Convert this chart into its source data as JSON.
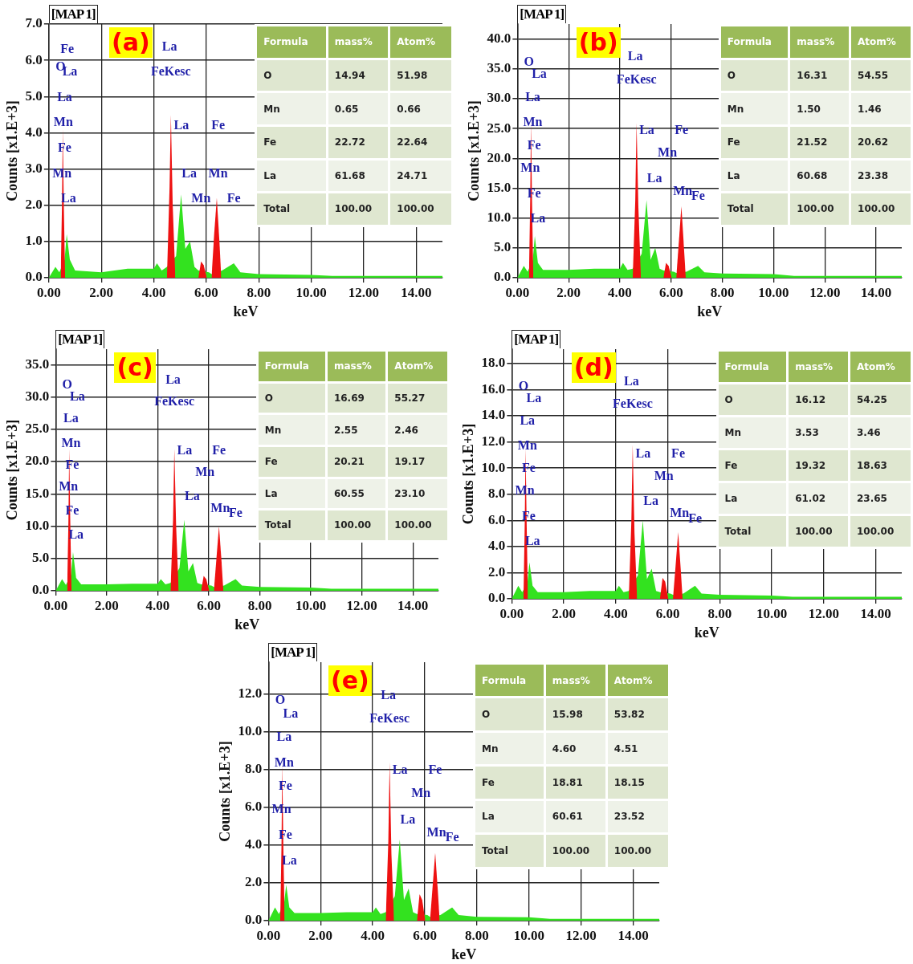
{
  "chart_data": [
    {
      "type": "area",
      "title": "(a)",
      "subtitle": "[MAP 1]",
      "xlabel": "keV",
      "ylabel": "Counts [x1.E+3]",
      "xlim": [
        0,
        15
      ],
      "ylim": [
        0,
        7
      ],
      "grid": true,
      "xticks": [
        {
          "value": 0,
          "label": "0.00"
        },
        {
          "value": 2,
          "label": "2.00"
        },
        {
          "value": 4,
          "label": "4.00"
        },
        {
          "value": 6,
          "label": "6.00"
        },
        {
          "value": 8,
          "label": "8.00"
        },
        {
          "value": 10,
          "label": "10.00"
        },
        {
          "value": 12,
          "label": "12.00"
        },
        {
          "value": 14,
          "label": "14.00"
        }
      ],
      "yticks": [
        {
          "value": 0,
          "label": "0.0"
        },
        {
          "value": 1,
          "label": "1.0"
        },
        {
          "value": 2,
          "label": "2.0"
        },
        {
          "value": 3,
          "label": "3.0"
        },
        {
          "value": 4,
          "label": "4.0"
        },
        {
          "value": 5,
          "label": "5.0"
        },
        {
          "value": 6,
          "label": "6.0"
        },
        {
          "value": 7,
          "label": "7.0"
        }
      ],
      "series": [
        {
          "color": "#33e21f",
          "x": [
            0,
            0.25,
            0.4,
            0.6,
            0.68,
            0.8,
            1.0,
            2.0,
            3.0,
            4.0,
            4.12,
            4.3,
            4.5,
            4.85,
            5.04,
            5.2,
            5.38,
            5.55,
            5.7,
            6.1,
            6.2,
            6.6,
            7.05,
            7.3,
            8.0,
            10.0,
            10.8,
            15.0
          ],
          "values": [
            0,
            0.3,
            0.15,
            0.5,
            1.2,
            0.5,
            0.2,
            0.15,
            0.25,
            0.25,
            0.4,
            0.2,
            0.3,
            0.6,
            2.3,
            0.8,
            1.0,
            0.3,
            0.2,
            0.15,
            0.1,
            0.2,
            0.4,
            0.15,
            0.1,
            0.08,
            0.05,
            0.05
          ]
        },
        {
          "color": "#ee1111",
          "x": [
            0.45,
            0.5,
            0.53,
            0.57,
            0.62,
            0.63,
            4.5,
            4.6,
            4.65,
            4.72,
            4.82,
            4.83,
            5.7,
            5.8,
            5.9,
            6.02,
            6.03,
            6.2,
            6.3,
            6.4,
            6.5,
            6.57
          ],
          "values": [
            0,
            2.0,
            4.1,
            2.0,
            0,
            null,
            0,
            2.5,
            4.5,
            2.0,
            0,
            null,
            0,
            0.45,
            0.35,
            0,
            null,
            0,
            1.2,
            2.2,
            1.0,
            0
          ]
        }
      ],
      "annotations": [
        "Fe",
        "O",
        "La",
        "La",
        "Mn",
        "Fe",
        "Mn",
        "La",
        "La",
        "FeKesc",
        "La",
        "La",
        "Mn",
        "Fe",
        "Mn",
        "Fe"
      ]
    },
    {
      "type": "other",
      "ylabel": "Formula",
      "categories": [
        "mass%",
        "Atom%"
      ],
      "y_categories": [
        "O",
        "Mn",
        "Fe",
        "La",
        "Total"
      ],
      "cell_labels": [
        [
          "14.94",
          "51.98"
        ],
        [
          "0.65",
          "0.66"
        ],
        [
          "22.72",
          "22.64"
        ],
        [
          "61.68",
          "24.71"
        ],
        [
          "100.00",
          "100.00"
        ]
      ]
    },
    {
      "type": "area",
      "title": "(b)",
      "subtitle": "[MAP 1]",
      "xlabel": "keV",
      "ylabel": "Counts [x1.E+3]",
      "xlim": [
        0,
        15
      ],
      "ylim": [
        0,
        42.5
      ],
      "grid": true,
      "xticks": [
        {
          "value": 0,
          "label": "0.00"
        },
        {
          "value": 2,
          "label": "2.00"
        },
        {
          "value": 4,
          "label": "4.00"
        },
        {
          "value": 6,
          "label": "6.00"
        },
        {
          "value": 8,
          "label": "8.00"
        },
        {
          "value": 10,
          "label": "10.00"
        },
        {
          "value": 12,
          "label": "12.00"
        },
        {
          "value": 14,
          "label": "14.00"
        }
      ],
      "yticks": [
        {
          "value": 0,
          "label": "0.0"
        },
        {
          "value": 5,
          "label": "5.0"
        },
        {
          "value": 10,
          "label": "10.0"
        },
        {
          "value": 15,
          "label": "15.0"
        },
        {
          "value": 20,
          "label": "20.0"
        },
        {
          "value": 25,
          "label": "25.0"
        },
        {
          "value": 30,
          "label": "30.0"
        },
        {
          "value": 35,
          "label": "35.0"
        },
        {
          "value": 40,
          "label": "40.0"
        }
      ],
      "series": [
        {
          "color": "#33e21f",
          "x": [
            0,
            0.25,
            0.4,
            0.6,
            0.68,
            0.8,
            1.0,
            2.0,
            3.0,
            4.0,
            4.12,
            4.3,
            4.5,
            4.85,
            5.04,
            5.2,
            5.38,
            5.55,
            5.7,
            6.1,
            6.2,
            6.6,
            7.05,
            7.3,
            8.0,
            10.0,
            10.8,
            15.0
          ],
          "values": [
            0,
            2,
            1,
            3,
            7,
            2.5,
            1.3,
            1.3,
            1.5,
            1.5,
            2.5,
            1.3,
            1.5,
            4,
            13,
            3,
            5,
            1.5,
            1.2,
            1,
            0.8,
            1,
            2,
            0.9,
            0.7,
            0.6,
            0.3,
            0.3
          ]
        },
        {
          "color": "#ee1111",
          "x": [
            0.45,
            0.5,
            0.53,
            0.57,
            0.62,
            0.63,
            4.5,
            4.6,
            4.65,
            4.72,
            4.82,
            4.83,
            5.7,
            5.8,
            5.9,
            6.02,
            6.03,
            6.2,
            6.3,
            6.4,
            6.5,
            6.57
          ],
          "values": [
            0,
            13,
            26,
            13,
            0,
            null,
            0,
            13,
            26,
            12,
            0,
            null,
            0,
            2.5,
            2,
            0,
            null,
            0,
            6,
            12,
            5,
            0
          ]
        }
      ],
      "annotations": [
        "O",
        "La",
        "La",
        "Mn",
        "Fe",
        "Mn",
        "Fe",
        "La",
        "La",
        "FeKesc",
        "La",
        "La",
        "Mn",
        "Fe",
        "Mn",
        "Fe"
      ]
    },
    {
      "type": "other",
      "ylabel": "Formula",
      "categories": [
        "mass%",
        "Atom%"
      ],
      "y_categories": [
        "O",
        "Mn",
        "Fe",
        "La",
        "Total"
      ],
      "cell_labels": [
        [
          "16.31",
          "54.55"
        ],
        [
          "1.50",
          "1.46"
        ],
        [
          "21.52",
          "20.62"
        ],
        [
          "60.68",
          "23.38"
        ],
        [
          "100.00",
          "100.00"
        ]
      ]
    },
    {
      "type": "area",
      "title": "(c)",
      "subtitle": "[MAP 1]",
      "xlabel": "keV",
      "ylabel": "Counts [x1.E+3]",
      "xlim": [
        0,
        15
      ],
      "ylim": [
        0,
        37.4
      ],
      "grid": true,
      "xticks": [
        {
          "value": 0,
          "label": "0.00"
        },
        {
          "value": 2,
          "label": "2.00"
        },
        {
          "value": 4,
          "label": "4.00"
        },
        {
          "value": 6,
          "label": "6.00"
        },
        {
          "value": 8,
          "label": "8.00"
        },
        {
          "value": 10,
          "label": "10.00"
        },
        {
          "value": 12,
          "label": "12.00"
        },
        {
          "value": 14,
          "label": "14.00"
        }
      ],
      "yticks": [
        {
          "value": 0,
          "label": "0.0"
        },
        {
          "value": 5,
          "label": "5.0"
        },
        {
          "value": 10,
          "label": "10.0"
        },
        {
          "value": 15,
          "label": "15.0"
        },
        {
          "value": 20,
          "label": "20.0"
        },
        {
          "value": 25,
          "label": "25.0"
        },
        {
          "value": 30,
          "label": "30.0"
        },
        {
          "value": 35,
          "label": "35.0"
        }
      ],
      "series": [
        {
          "color": "#33e21f",
          "x": [
            0,
            0.25,
            0.4,
            0.6,
            0.68,
            0.8,
            1.0,
            2.0,
            3.0,
            4.0,
            4.12,
            4.3,
            4.5,
            4.85,
            5.04,
            5.2,
            5.38,
            5.55,
            5.7,
            6.1,
            6.2,
            6.6,
            7.05,
            7.3,
            8.0,
            10.0,
            10.8,
            15.0
          ],
          "values": [
            0,
            1.8,
            0.9,
            2.5,
            6,
            2,
            1.0,
            1.0,
            1.1,
            1.1,
            1.8,
            1.0,
            1.2,
            3.5,
            11,
            3,
            4.3,
            1.2,
            1.0,
            0.8,
            0.6,
            0.8,
            1.8,
            0.8,
            0.6,
            0.5,
            0.3,
            0.3
          ]
        },
        {
          "color": "#ee1111",
          "x": [
            0.45,
            0.5,
            0.53,
            0.57,
            0.62,
            0.63,
            4.5,
            4.6,
            4.65,
            4.72,
            4.82,
            4.83,
            5.7,
            5.8,
            5.9,
            6.02,
            6.03,
            6.2,
            6.3,
            6.4,
            6.5,
            6.57
          ],
          "values": [
            0,
            11,
            22,
            11,
            0,
            null,
            0,
            11,
            22,
            10,
            0,
            null,
            0,
            2.3,
            1.8,
            0,
            null,
            0,
            5,
            10,
            4.5,
            0
          ]
        }
      ],
      "annotations": [
        "O",
        "La",
        "La",
        "Mn",
        "Fe",
        "Mn",
        "Fe",
        "La",
        "La",
        "FeKesc",
        "La",
        "La",
        "Mn",
        "Fe",
        "Mn",
        "Fe"
      ]
    },
    {
      "type": "other",
      "ylabel": "Formula",
      "categories": [
        "mass%",
        "Atom%"
      ],
      "y_categories": [
        "O",
        "Mn",
        "Fe",
        "La",
        "Total"
      ],
      "cell_labels": [
        [
          "16.69",
          "55.27"
        ],
        [
          "2.55",
          "2.46"
        ],
        [
          "20.21",
          "19.17"
        ],
        [
          "60.55",
          "23.10"
        ],
        [
          "100.00",
          "100.00"
        ]
      ]
    },
    {
      "type": "area",
      "title": "(d)",
      "subtitle": "[MAP 1]",
      "xlabel": "keV",
      "ylabel": "Counts [x1.E+3]",
      "xlim": [
        0,
        15
      ],
      "ylim": [
        0,
        19.1
      ],
      "grid": true,
      "xticks": [
        {
          "value": 0,
          "label": "0.00"
        },
        {
          "value": 2,
          "label": "2.00"
        },
        {
          "value": 4,
          "label": "4.00"
        },
        {
          "value": 6,
          "label": "6.00"
        },
        {
          "value": 8,
          "label": "8.00"
        },
        {
          "value": 10,
          "label": "10.00"
        },
        {
          "value": 12,
          "label": "12.00"
        },
        {
          "value": 14,
          "label": "14.00"
        }
      ],
      "yticks": [
        {
          "value": 0,
          "label": "0.0"
        },
        {
          "value": 2,
          "label": "2.0"
        },
        {
          "value": 4,
          "label": "4.0"
        },
        {
          "value": 6,
          "label": "6.0"
        },
        {
          "value": 8,
          "label": "8.0"
        },
        {
          "value": 10,
          "label": "10.0"
        },
        {
          "value": 12,
          "label": "12.0"
        },
        {
          "value": 14,
          "label": "14.0"
        },
        {
          "value": 16,
          "label": "16.0"
        },
        {
          "value": 18,
          "label": "18.0"
        }
      ],
      "series": [
        {
          "color": "#33e21f",
          "x": [
            0,
            0.25,
            0.4,
            0.6,
            0.68,
            0.8,
            1.0,
            2.0,
            3.0,
            4.0,
            4.12,
            4.3,
            4.5,
            4.85,
            5.04,
            5.2,
            5.38,
            5.55,
            5.7,
            6.1,
            6.2,
            6.6,
            7.05,
            7.3,
            8.0,
            10.0,
            10.8,
            15.0
          ],
          "values": [
            0,
            1.0,
            0.5,
            1.2,
            2.8,
            1.0,
            0.5,
            0.5,
            0.6,
            0.6,
            1.0,
            0.5,
            0.6,
            1.8,
            6,
            1.5,
            2.3,
            0.6,
            0.5,
            0.4,
            0.3,
            0.4,
            1.0,
            0.4,
            0.3,
            0.25,
            0.15,
            0.15
          ]
        },
        {
          "color": "#ee1111",
          "x": [
            0.45,
            0.5,
            0.53,
            0.57,
            0.62,
            0.63,
            4.5,
            4.6,
            4.65,
            4.72,
            4.82,
            4.83,
            5.7,
            5.8,
            5.9,
            6.02,
            6.03,
            6.2,
            6.3,
            6.4,
            6.5,
            6.57
          ],
          "values": [
            0,
            6,
            11.5,
            6,
            0,
            null,
            0,
            6,
            11.8,
            5,
            0,
            null,
            0,
            1.6,
            1.3,
            0,
            null,
            0,
            2.5,
            5.1,
            2.2,
            0
          ]
        }
      ],
      "annotations": [
        "O",
        "La",
        "La",
        "Mn",
        "Fe",
        "Mn",
        "Fe",
        "La",
        "La",
        "FeKesc",
        "La",
        "La",
        "Mn",
        "Fe",
        "Mn",
        "Fe"
      ]
    },
    {
      "type": "other",
      "ylabel": "Formula",
      "categories": [
        "mass%",
        "Atom%"
      ],
      "y_categories": [
        "O",
        "Mn",
        "Fe",
        "La",
        "Total"
      ],
      "cell_labels": [
        [
          "16.12",
          "54.25"
        ],
        [
          "3.53",
          "3.46"
        ],
        [
          "19.32",
          "18.63"
        ],
        [
          "61.02",
          "23.65"
        ],
        [
          "100.00",
          "100.00"
        ]
      ]
    },
    {
      "type": "area",
      "title": "(e)",
      "subtitle": "[MAP 1]",
      "xlabel": "keV",
      "ylabel": "Counts [x1.E+3]",
      "xlim": [
        0,
        15
      ],
      "ylim": [
        0,
        13.7
      ],
      "grid": true,
      "xticks": [
        {
          "value": 0,
          "label": "0.00"
        },
        {
          "value": 2,
          "label": "2.00"
        },
        {
          "value": 4,
          "label": "4.00"
        },
        {
          "value": 6,
          "label": "6.00"
        },
        {
          "value": 8,
          "label": "8.00"
        },
        {
          "value": 10,
          "label": "10.00"
        },
        {
          "value": 12,
          "label": "12.00"
        },
        {
          "value": 14,
          "label": "14.00"
        }
      ],
      "yticks": [
        {
          "value": 0,
          "label": "0.0"
        },
        {
          "value": 2,
          "label": "2.0"
        },
        {
          "value": 4,
          "label": "4.0"
        },
        {
          "value": 6,
          "label": "6.0"
        },
        {
          "value": 8,
          "label": "8.0"
        },
        {
          "value": 10,
          "label": "10.0"
        },
        {
          "value": 12,
          "label": "12.0"
        }
      ],
      "series": [
        {
          "color": "#33e21f",
          "x": [
            0,
            0.25,
            0.4,
            0.6,
            0.68,
            0.8,
            1.0,
            2.0,
            3.0,
            4.0,
            4.12,
            4.3,
            4.5,
            4.85,
            5.04,
            5.2,
            5.38,
            5.55,
            5.7,
            6.1,
            6.2,
            6.6,
            7.05,
            7.3,
            8.0,
            10.0,
            10.8,
            15.0
          ],
          "values": [
            0,
            0.7,
            0.35,
            0.9,
            1.9,
            0.7,
            0.4,
            0.4,
            0.45,
            0.45,
            0.7,
            0.35,
            0.45,
            1.3,
            4.3,
            1.1,
            1.7,
            0.45,
            0.35,
            0.3,
            0.2,
            0.3,
            0.7,
            0.3,
            0.2,
            0.18,
            0.1,
            0.1
          ]
        },
        {
          "color": "#ee1111",
          "x": [
            0.45,
            0.5,
            0.53,
            0.57,
            0.62,
            0.63,
            4.5,
            4.6,
            4.65,
            4.72,
            4.82,
            4.83,
            5.7,
            5.8,
            5.9,
            6.02,
            6.03,
            6.2,
            6.3,
            6.4,
            6.5,
            6.57
          ],
          "values": [
            0,
            4,
            8.3,
            4,
            0,
            null,
            0,
            4.2,
            8.4,
            3.5,
            0,
            null,
            0,
            1.4,
            1.1,
            0,
            null,
            0,
            1.8,
            3.6,
            1.6,
            0
          ]
        }
      ],
      "annotations": [
        "O",
        "La",
        "La",
        "Mn",
        "Fe",
        "Mn",
        "Fe",
        "La",
        "La",
        "FeKesc",
        "La",
        "La",
        "Mn",
        "Fe",
        "Mn",
        "Fe"
      ]
    },
    {
      "type": "other",
      "ylabel": "Formula",
      "categories": [
        "mass%",
        "Atom%"
      ],
      "y_categories": [
        "O",
        "Mn",
        "Fe",
        "La",
        "Total"
      ],
      "cell_labels": [
        [
          "15.98",
          "53.82"
        ],
        [
          "4.60",
          "4.51"
        ],
        [
          "18.81",
          "18.15"
        ],
        [
          "60.61",
          "23.52"
        ],
        [
          "100.00",
          "100.00"
        ]
      ]
    }
  ]
}
